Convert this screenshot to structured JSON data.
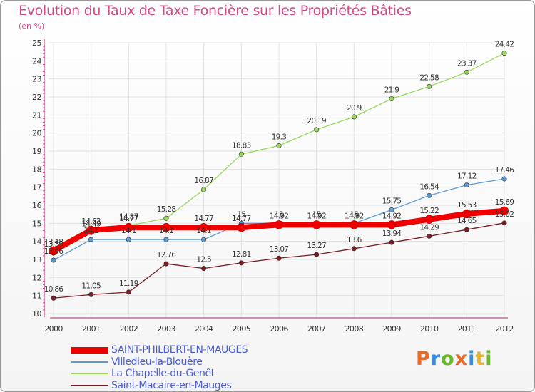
{
  "header": {
    "title": "Evolution du Taux de Taxe Foncière sur les Propriétés Bâties",
    "subtitle": "(en %)"
  },
  "logo": {
    "text": "Proxiti",
    "colors": [
      "#e8692a",
      "#3a8fd8",
      "#6ab82e",
      "#e8692a",
      "#3a8fd8",
      "#e8b42a",
      "#6ab82e"
    ]
  },
  "chart_data": {
    "type": "line",
    "title": "Evolution du Taux de Taxe Foncière sur les Propriétés Bâties",
    "ylabel": "(en %)",
    "xlabel": "",
    "x": [
      "2000",
      "2001",
      "2002",
      "2003",
      "2004",
      "2005",
      "2006",
      "2007",
      "2008",
      "2009",
      "2010",
      "2011",
      "2012"
    ],
    "ylim": [
      10,
      25
    ],
    "yticks": [
      "10",
      "11",
      "12",
      "13",
      "14",
      "15",
      "16",
      "17",
      "18",
      "19",
      "20",
      "21",
      "22",
      "23",
      "24",
      "25"
    ],
    "grid": "horizontal",
    "legend_position": "bottom",
    "series": [
      {
        "name": "SAINT-PHILBERT-EN-MAUGES",
        "color": "#ee0000",
        "width": "thick",
        "values": [
          13.48,
          14.62,
          14.77,
          14.77,
          14.77,
          14.77,
          14.92,
          14.92,
          14.92,
          14.92,
          15.22,
          15.53,
          15.69
        ],
        "labels": [
          "13.48",
          "14.62",
          "14.77",
          "",
          "14.77",
          "14.77",
          "14.92",
          "14.92",
          "14.92",
          "14.92",
          "15.22",
          "15.53",
          "15.69"
        ]
      },
      {
        "name": "Villedieu-la-Blouère",
        "color": "#5b9bd5",
        "width": "thin",
        "values": [
          12.96,
          14.1,
          14.1,
          14.1,
          14.1,
          15.0,
          15.0,
          15.0,
          15.0,
          15.75,
          16.54,
          17.12,
          17.46
        ],
        "labels": [
          "12.96",
          "14.1",
          "14.1",
          "14.1",
          "14.1",
          "15",
          "15",
          "15",
          "15",
          "15.75",
          "16.54",
          "17.12",
          "17.46"
        ]
      },
      {
        "name": "La Chapelle-du-Genêt",
        "color": "#9ad860",
        "width": "thin",
        "values": [
          13.35,
          14.49,
          14.87,
          15.28,
          16.87,
          18.83,
          19.3,
          20.19,
          20.9,
          21.9,
          22.58,
          23.37,
          24.42
        ],
        "labels": [
          "13.35",
          "14.49",
          "14.87",
          "15.28",
          "16.87",
          "18.83",
          "19.3",
          "20.19",
          "20.9",
          "21.9",
          "22.58",
          "23.37",
          "24.42"
        ]
      },
      {
        "name": "Saint-Macaire-en-Mauges",
        "color": "#7a1e24",
        "width": "thin",
        "values": [
          10.86,
          11.05,
          11.19,
          12.76,
          12.5,
          12.81,
          13.07,
          13.27,
          13.6,
          13.94,
          14.29,
          14.65,
          15.02
        ],
        "labels": [
          "10.86",
          "11.05",
          "11.19",
          "12.76",
          "12.5",
          "12.81",
          "13.07",
          "13.27",
          "13.6",
          "13.94",
          "14.29",
          "14.65",
          "15.02"
        ]
      }
    ]
  }
}
